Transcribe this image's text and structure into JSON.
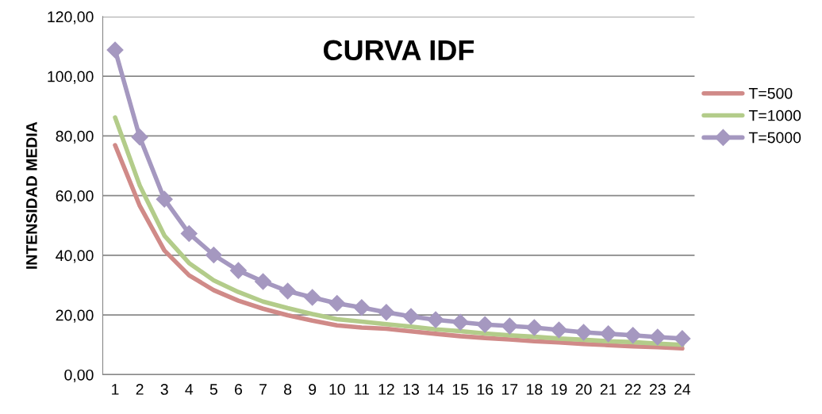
{
  "chart_data": {
    "type": "line",
    "title": "CURVA IDF",
    "ylabel": "INTENSIDAD MEDIA",
    "categories": [
      "1",
      "2",
      "3",
      "4",
      "5",
      "6",
      "7",
      "8",
      "9",
      "10",
      "11",
      "12",
      "13",
      "14",
      "15",
      "16",
      "17",
      "18",
      "19",
      "20",
      "21",
      "22",
      "23",
      "24"
    ],
    "series": [
      {
        "name": "T=500",
        "color": "#d08a88",
        "marker": "none",
        "values": [
          76.9,
          56.6,
          41.6,
          33.3,
          28.3,
          24.8,
          22.1,
          19.9,
          18.1,
          16.5,
          15.8,
          15.4,
          14.5,
          13.7,
          12.9,
          12.3,
          11.8,
          11.2,
          10.8,
          10.3,
          9.9,
          9.5,
          9.2,
          8.8
        ]
      },
      {
        "name": "T=1000",
        "color": "#b3cc8a",
        "marker": "none",
        "values": [
          86.2,
          63.4,
          46.6,
          37.4,
          31.6,
          27.7,
          24.5,
          22.3,
          20.3,
          18.6,
          17.8,
          16.9,
          16.1,
          15.2,
          14.6,
          13.8,
          13.2,
          12.7,
          12.1,
          11.7,
          11.2,
          10.9,
          10.4,
          10.0
        ]
      },
      {
        "name": "T=5000",
        "color": "#a598c0",
        "marker": "diamond",
        "values": [
          108.8,
          79.6,
          58.8,
          47.3,
          40.1,
          34.9,
          31.2,
          28.0,
          25.9,
          23.9,
          22.5,
          20.9,
          19.5,
          18.4,
          17.6,
          16.8,
          16.3,
          15.8,
          15.0,
          14.2,
          13.7,
          13.2,
          12.6,
          12.1
        ]
      }
    ],
    "ylim": [
      0,
      120
    ],
    "yticks": [
      {
        "value": 0,
        "label": "0,00"
      },
      {
        "value": 20,
        "label": "20,00"
      },
      {
        "value": 40,
        "label": "40,00"
      },
      {
        "value": 60,
        "label": "60,00"
      },
      {
        "value": 80,
        "label": "80,00"
      },
      {
        "value": 100,
        "label": "100,00"
      },
      {
        "value": 120,
        "label": "120,00"
      }
    ],
    "grid": "y",
    "legend": "right",
    "line_style": "solid"
  }
}
